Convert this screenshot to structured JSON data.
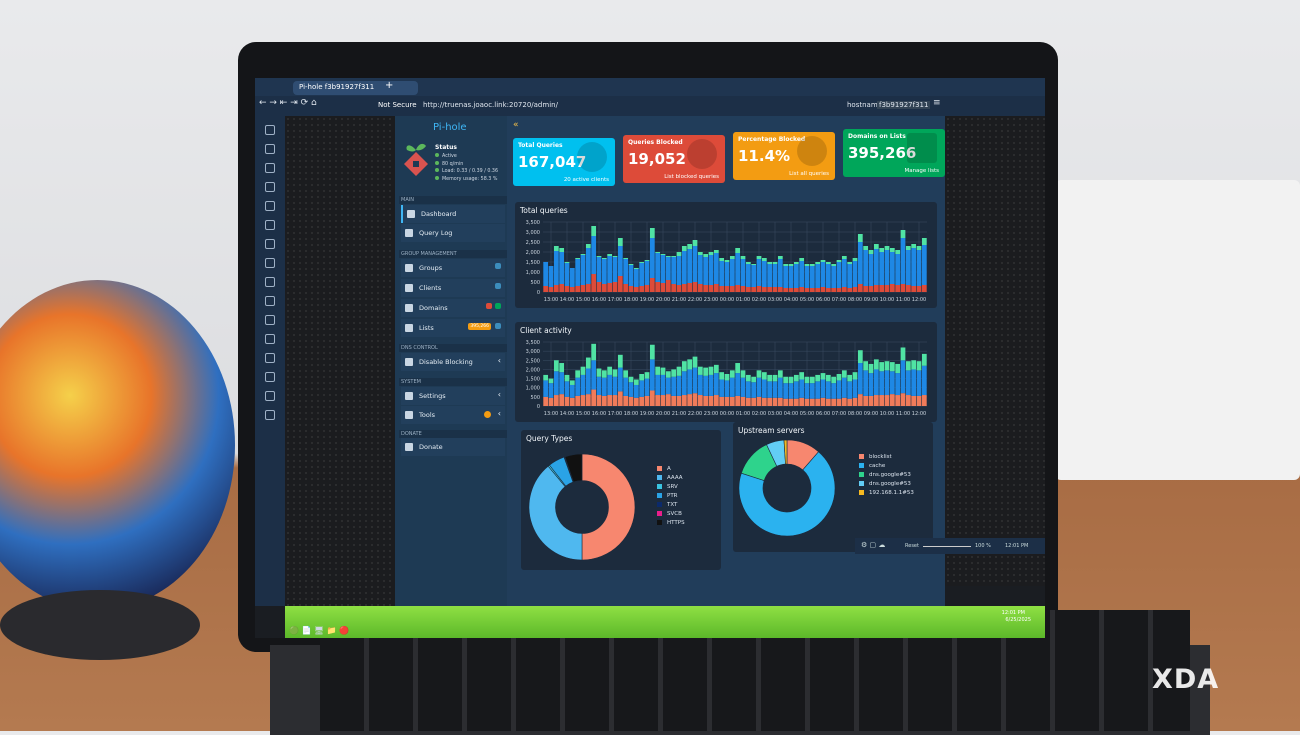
{
  "browser": {
    "tab_title": "Pi-hole f3b91927f311",
    "security": "Not Secure",
    "url": "http://truenas.joaoc.link:20720/admin/",
    "new_tab": "+"
  },
  "header": {
    "hostname_label": "hostname:",
    "hostname": "f3b91927f311"
  },
  "brand": {
    "name": "Pi-hole"
  },
  "status": {
    "title": "Status",
    "items": [
      "Active",
      "80 q/min",
      "Load: 0.33 / 0.39 / 0.36",
      "Memory usage: 58.3 %"
    ]
  },
  "sidebar": {
    "sections": [
      "MAIN",
      "GROUP MANAGEMENT",
      "DNS CONTROL",
      "SYSTEM",
      "DONATE"
    ],
    "items": [
      {
        "label": "Dashboard",
        "icon": "home-icon"
      },
      {
        "label": "Query Log",
        "icon": "file-icon"
      },
      {
        "label": "Groups",
        "icon": "users-icon"
      },
      {
        "label": "Clients",
        "icon": "laptop-icon"
      },
      {
        "label": "Domains",
        "icon": "list-icon"
      },
      {
        "label": "Lists",
        "icon": "shield-icon",
        "badge": "395,266"
      },
      {
        "label": "Disable Blocking",
        "icon": "stop-icon"
      },
      {
        "label": "Settings",
        "icon": "gears-icon"
      },
      {
        "label": "Tools",
        "icon": "tools-icon"
      },
      {
        "label": "Donate",
        "icon": "donate-icon"
      }
    ]
  },
  "cards": [
    {
      "title": "Total Queries",
      "value": "167,047",
      "footer": "20 active clients",
      "color": "#00c0ef"
    },
    {
      "title": "Queries Blocked",
      "value": "19,052",
      "footer": "List blocked queries",
      "color": "#dd4b39"
    },
    {
      "title": "Percentage Blocked",
      "value": "11.4%",
      "footer": "List all queries",
      "color": "#f39c12"
    },
    {
      "title": "Domains on Lists",
      "value": "395,266",
      "footer": "Manage lists",
      "color": "#00a65a"
    }
  ],
  "chart_data": [
    {
      "type": "bar",
      "title": "Total queries",
      "stacked": true,
      "yticks": [
        "0",
        "500",
        "1,000",
        "1,500",
        "2,000",
        "2,500",
        "3,000",
        "3,500"
      ],
      "ylim": [
        0,
        3500
      ],
      "xticks": [
        "13:00",
        "14:00",
        "15:00",
        "16:00",
        "17:00",
        "18:00",
        "19:00",
        "20:00",
        "21:00",
        "22:00",
        "23:00",
        "00:00",
        "01:00",
        "02:00",
        "03:00",
        "04:00",
        "05:00",
        "06:00",
        "07:00",
        "08:00",
        "09:00",
        "10:00",
        "11:00",
        "12:00"
      ],
      "series": [
        {
          "color": "#dd4b39",
          "values": [
            300,
            250,
            350,
            400,
            300,
            250,
            300,
            350,
            400,
            900,
            500,
            400,
            450,
            500,
            800,
            400,
            300,
            250,
            300,
            350,
            700,
            500,
            450,
            600,
            400,
            350,
            400,
            450,
            500,
            400,
            350,
            350,
            400,
            300,
            300,
            300,
            350,
            300,
            250,
            250,
            300,
            250,
            250,
            250,
            250,
            200,
            200,
            200,
            250,
            200,
            200,
            200,
            250,
            200,
            200,
            200,
            250,
            200,
            250,
            400,
            300,
            300,
            350,
            350,
            350,
            400,
            350,
            400,
            350,
            300,
            300,
            350
          ]
        },
        {
          "color": "#1e88e5",
          "values": [
            1200,
            1050,
            1700,
            1600,
            1150,
            950,
            1350,
            1500,
            1800,
            1900,
            1250,
            1250,
            1350,
            1250,
            1500,
            1250,
            1050,
            900,
            1150,
            1200,
            2000,
            1450,
            1400,
            1150,
            1350,
            1450,
            1650,
            1700,
            1800,
            1450,
            1400,
            1500,
            1550,
            1250,
            1200,
            1350,
            1600,
            1350,
            1150,
            1100,
            1350,
            1300,
            1150,
            1150,
            1400,
            1100,
            1100,
            1200,
            1300,
            1100,
            1100,
            1200,
            1250,
            1200,
            1100,
            1300,
            1400,
            1200,
            1300,
            2100,
            1800,
            1600,
            1800,
            1650,
            1750,
            1600,
            1550,
            2300,
            1750,
            1900,
            1800,
            2000
          ]
        },
        {
          "color": "#50e3a4",
          "values": [
            0,
            0,
            250,
            200,
            50,
            0,
            50,
            50,
            200,
            500,
            50,
            50,
            100,
            50,
            400,
            50,
            50,
            50,
            50,
            50,
            500,
            50,
            50,
            50,
            50,
            200,
            250,
            250,
            300,
            150,
            150,
            150,
            150,
            150,
            100,
            150,
            250,
            150,
            100,
            50,
            150,
            150,
            100,
            100,
            150,
            100,
            100,
            100,
            150,
            100,
            100,
            100,
            100,
            100,
            100,
            100,
            150,
            100,
            150,
            400,
            200,
            200,
            250,
            200,
            200,
            200,
            200,
            400,
            200,
            200,
            200,
            350
          ]
        }
      ]
    },
    {
      "type": "bar",
      "title": "Client activity",
      "stacked": true,
      "yticks": [
        "0",
        "500",
        "1,000",
        "1,500",
        "2,000",
        "2,500",
        "3,000",
        "3,500"
      ],
      "ylim": [
        0,
        3500
      ],
      "xticks": [
        "13:00",
        "14:00",
        "15:00",
        "16:00",
        "17:00",
        "18:00",
        "19:00",
        "20:00",
        "21:00",
        "22:00",
        "23:00",
        "00:00",
        "01:00",
        "02:00",
        "03:00",
        "04:00",
        "05:00",
        "06:00",
        "07:00",
        "08:00",
        "09:00",
        "10:00",
        "11:00",
        "12:00"
      ],
      "series": [
        {
          "color": "#f07b5a",
          "values": [
            500,
            450,
            600,
            650,
            500,
            450,
            550,
            600,
            650,
            900,
            600,
            550,
            600,
            600,
            800,
            550,
            500,
            450,
            500,
            550,
            850,
            600,
            600,
            650,
            550,
            550,
            600,
            650,
            700,
            600,
            550,
            550,
            600,
            500,
            500,
            500,
            550,
            500,
            450,
            450,
            500,
            450,
            450,
            450,
            450,
            400,
            400,
            400,
            450,
            400,
            400,
            400,
            450,
            400,
            400,
            400,
            450,
            400,
            450,
            650,
            550,
            550,
            600,
            600,
            600,
            650,
            600,
            700,
            600,
            550,
            550,
            600
          ]
        },
        {
          "color": "#1e88e5",
          "values": [
            900,
            800,
            1300,
            1200,
            850,
            700,
            1000,
            1100,
            1400,
            1600,
            1000,
            1000,
            1100,
            1000,
            1300,
            1000,
            800,
            700,
            900,
            950,
            1700,
            1100,
            1100,
            900,
            1050,
            1100,
            1300,
            1350,
            1400,
            1100,
            1100,
            1150,
            1200,
            950,
            900,
            1050,
            1250,
            1050,
            900,
            850,
            1050,
            1000,
            900,
            900,
            1100,
            850,
            850,
            950,
            1000,
            850,
            850,
            950,
            1000,
            950,
            850,
            1000,
            1100,
            950,
            1000,
            1700,
            1400,
            1250,
            1400,
            1300,
            1350,
            1250,
            1200,
            1800,
            1350,
            1450,
            1400,
            1600
          ]
        },
        {
          "color": "#50e3a4",
          "values": [
            300,
            250,
            600,
            500,
            350,
            250,
            400,
            450,
            600,
            900,
            450,
            400,
            450,
            400,
            700,
            400,
            300,
            300,
            350,
            350,
            800,
            450,
            400,
            350,
            400,
            500,
            550,
            550,
            600,
            450,
            450,
            450,
            450,
            400,
            350,
            400,
            550,
            400,
            350,
            300,
            400,
            400,
            350,
            350,
            400,
            350,
            350,
            350,
            400,
            350,
            350,
            350,
            350,
            350,
            350,
            350,
            400,
            350,
            400,
            700,
            500,
            500,
            550,
            500,
            500,
            500,
            500,
            700,
            500,
            500,
            500,
            650
          ]
        }
      ]
    },
    {
      "type": "pie",
      "donut": true,
      "title": "Query Types",
      "labels": [
        "A",
        "AAAA",
        "SRV",
        "PTR",
        "TXT",
        "SVCB",
        "HTTPS"
      ],
      "values": [
        50,
        39,
        0.5,
        5,
        0.2,
        0.1,
        5.2
      ],
      "colors": [
        "#f7876f",
        "#4fb8ef",
        "#3ac4e0",
        "#2aa3e6",
        "#0b2a6b",
        "#e91e8c",
        "#111111"
      ]
    },
    {
      "type": "pie",
      "donut": true,
      "title": "Upstream servers",
      "labels": [
        "blocklist",
        "cache",
        "dns.google#53",
        "dns.google#53",
        "192.168.1.1#53"
      ],
      "values": [
        11.4,
        68.6,
        13,
        6,
        1
      ],
      "colors": [
        "#f7876f",
        "#2bb2ef",
        "#2ed38c",
        "#62cdf5",
        "#f5b921"
      ]
    }
  ],
  "statusbar": {
    "reset": "Reset",
    "zoom": "100 %",
    "time": "12:01 PM"
  },
  "taskbar": {
    "time": "12:01 PM",
    "date": "6/25/2025"
  },
  "watermark": "XDA"
}
